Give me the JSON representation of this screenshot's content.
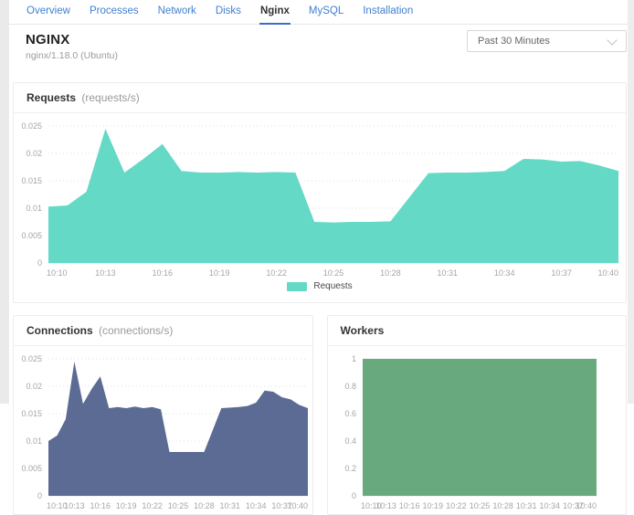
{
  "tabs": {
    "items": [
      {
        "label": "Overview",
        "active": false
      },
      {
        "label": "Processes",
        "active": false
      },
      {
        "label": "Network",
        "active": false
      },
      {
        "label": "Disks",
        "active": false
      },
      {
        "label": "Nginx",
        "active": true
      },
      {
        "label": "MySQL",
        "active": false
      },
      {
        "label": "Installation",
        "active": false
      }
    ]
  },
  "header": {
    "title": "NGINX",
    "subtitle": "nginx/1.18.0 (Ubuntu)",
    "time_range": {
      "value": "Past 30 Minutes"
    }
  },
  "colors": {
    "tab_blue": "#4080cf",
    "tab_underline": "#3a6fc4",
    "requests_fill": "#64d9c6",
    "connections_fill": "#5c6b94",
    "workers_fill": "#68aa7d",
    "grid": "#dedede",
    "axis_text": "#a6a6a6"
  },
  "chart_data": [
    {
      "id": "requests",
      "type": "area",
      "title": "Requests",
      "unit_label": "(requests/s)",
      "color": "#64d9c6",
      "ylim": [
        0,
        0.025
      ],
      "yticks": [
        0,
        0.005,
        0.01,
        0.015,
        0.02,
        0.025
      ],
      "ytick_labels": [
        "0",
        "0.005",
        "0.01",
        "0.015",
        "0.02",
        "0.025"
      ],
      "x_labels": [
        "10:10",
        "10:13",
        "10:16",
        "10:19",
        "10:22",
        "10:25",
        "10:28",
        "10:31",
        "10:34",
        "10:37",
        "10:40"
      ],
      "values": [
        0.0103,
        0.0105,
        0.013,
        0.0245,
        0.0165,
        0.019,
        0.0217,
        0.0168,
        0.0165,
        0.0165,
        0.0166,
        0.0165,
        0.0166,
        0.0165,
        0.0075,
        0.0074,
        0.0075,
        0.0075,
        0.0076,
        0.012,
        0.0164,
        0.0165,
        0.0165,
        0.0166,
        0.0168,
        0.019,
        0.0189,
        0.0185,
        0.0186,
        0.0178,
        0.0168
      ],
      "grid": true,
      "legend_position": "bottom",
      "legend": [
        {
          "label": "Requests",
          "color": "#64d9c6"
        }
      ]
    },
    {
      "id": "connections",
      "type": "area",
      "title": "Connections",
      "unit_label": "(connections/s)",
      "color": "#5c6b94",
      "ylim": [
        0,
        0.025
      ],
      "yticks": [
        0,
        0.005,
        0.01,
        0.015,
        0.02,
        0.025
      ],
      "ytick_labels": [
        "0",
        "0.005",
        "0.01",
        "0.015",
        "0.02",
        "0.025"
      ],
      "x_labels": [
        "10:10",
        "10:13",
        "10:16",
        "10:19",
        "10:22",
        "10:25",
        "10:28",
        "10:31",
        "10:34",
        "10:37",
        "10:40"
      ],
      "values": [
        0.01,
        0.011,
        0.014,
        0.0245,
        0.0168,
        0.0195,
        0.0218,
        0.016,
        0.0162,
        0.016,
        0.0163,
        0.016,
        0.0162,
        0.0158,
        0.008,
        0.008,
        0.008,
        0.008,
        0.008,
        0.012,
        0.016,
        0.0161,
        0.0162,
        0.0164,
        0.017,
        0.0192,
        0.019,
        0.018,
        0.0176,
        0.0166,
        0.016
      ],
      "grid": true,
      "legend": []
    },
    {
      "id": "workers",
      "type": "area",
      "title": "Workers",
      "unit_label": "",
      "color": "#68aa7d",
      "ylim": [
        0,
        1
      ],
      "yticks": [
        0,
        0.2,
        0.4,
        0.6,
        0.8,
        1
      ],
      "ytick_labels": [
        "0",
        "0.2",
        "0.4",
        "0.6",
        "0.8",
        "1"
      ],
      "x_labels": [
        "10:10",
        "10:13",
        "10:16",
        "10:19",
        "10:22",
        "10:25",
        "10:28",
        "10:31",
        "10:34",
        "10:37",
        "10:40"
      ],
      "values": [
        1,
        1,
        1,
        1,
        1,
        1,
        1,
        1,
        1,
        1,
        1,
        1,
        1,
        1,
        1,
        1,
        1,
        1,
        1,
        1,
        1,
        1,
        1,
        1,
        1,
        1,
        1,
        1,
        1,
        1,
        1
      ],
      "grid": true,
      "legend": []
    }
  ]
}
